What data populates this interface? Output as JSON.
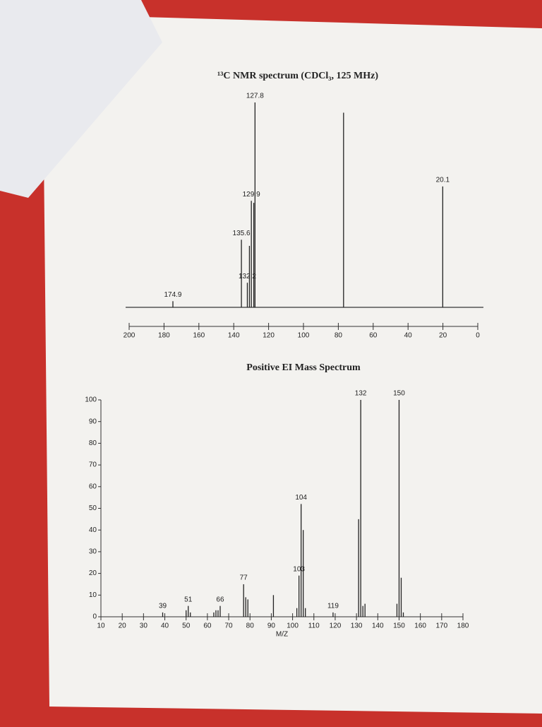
{
  "chart_data": [
    {
      "type": "stem",
      "title": "¹³C NMR spectrum (CDCl₃, 125 MHz)",
      "color": "#222222",
      "xlim": [
        200,
        0
      ],
      "xticks": [
        200,
        180,
        160,
        140,
        120,
        100,
        80,
        60,
        40,
        20,
        0
      ],
      "ylim": [
        0,
        100
      ],
      "peaks": {
        "x": [
          174.9,
          135.6,
          132.2,
          129.9,
          127.8,
          20.1
        ],
        "values": [
          3,
          33,
          12,
          52,
          100,
          59
        ]
      },
      "unlabeled_peaks": {
        "x": [
          77.0,
          128.5,
          131.0
        ],
        "values": [
          95,
          51,
          30
        ]
      }
    },
    {
      "type": "stem",
      "title": "Positive EI Mass Spectrum",
      "color": "#222222",
      "xlabel": "M/Z",
      "xlim": [
        10,
        180
      ],
      "xticks": [
        10,
        20,
        30,
        40,
        50,
        60,
        70,
        80,
        90,
        100,
        110,
        120,
        130,
        140,
        150,
        160,
        170,
        180
      ],
      "ylim": [
        0,
        100
      ],
      "yticks": [
        0,
        10,
        20,
        30,
        40,
        50,
        60,
        70,
        80,
        90,
        100
      ],
      "peaks": {
        "x": [
          39,
          51,
          66,
          77,
          103,
          104,
          119,
          132,
          150
        ],
        "values": [
          2,
          5,
          5,
          15,
          19,
          52,
          2,
          100,
          100
        ]
      },
      "unlabeled_peaks": {
        "x": [
          50,
          52,
          63,
          64,
          65,
          78,
          79,
          91,
          102,
          105,
          106,
          131,
          133,
          134,
          149,
          151,
          152
        ],
        "values": [
          3,
          2,
          2,
          3,
          3,
          9,
          8,
          10,
          4,
          40,
          4,
          45,
          5,
          6,
          6,
          18,
          2
        ]
      }
    }
  ]
}
